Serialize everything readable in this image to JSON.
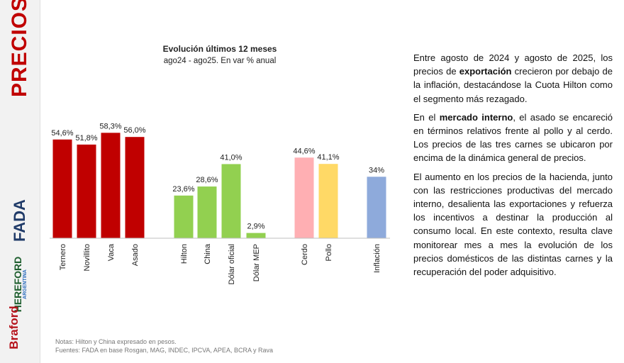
{
  "sidebar": {
    "section_label": "PRECIOS",
    "logos": {
      "fada": "FADA",
      "hereford": "HEREFORD",
      "hereford_sub": "ARGENTINA",
      "braford": "Braford"
    }
  },
  "chart_data": {
    "type": "bar",
    "title": "Evolución últimos 12 meses",
    "subtitle": "ago24 - ago25. En var % anual",
    "categories": [
      "Ternero",
      "Novillito",
      "Vaca",
      "Asado",
      "Hilton",
      "China",
      "Dólar oficial",
      "Dólar MEP",
      "Cerdo",
      "Pollo",
      "Inflación"
    ],
    "values": [
      54.6,
      51.8,
      58.3,
      56.0,
      23.6,
      28.6,
      41.0,
      2.9,
      44.6,
      41.1,
      34
    ],
    "data_labels": [
      "54,6%",
      "51,8%",
      "58,3%",
      "56,0%",
      "23,6%",
      "28,6%",
      "41,0%",
      "2,9%",
      "44,6%",
      "41,1%",
      "34%"
    ],
    "groups": [
      {
        "members": [
          0,
          1,
          2,
          3
        ],
        "color": "#c00000"
      },
      {
        "members": [
          4,
          5,
          6,
          7
        ],
        "color": "#92d050"
      },
      {
        "members": [
          8
        ],
        "color": "#ffafb3"
      },
      {
        "members": [
          9
        ],
        "color": "#ffd966"
      },
      {
        "members": [
          10
        ],
        "color": "#8eaadb"
      }
    ],
    "ylim": [
      0,
      65
    ],
    "grid": false,
    "legend": "none"
  },
  "notes": {
    "line1": "Notas: Hilton y China expresado en pesos.",
    "line2": "Fuentes: FADA en base Rosgan, MAG, INDEC, IPCVA, APEA, BCRA y Rava"
  },
  "text_panel": {
    "p1": [
      {
        "text": "Entre agosto de 2024 y agosto de 2025, los precios de ",
        "bold": false
      },
      {
        "text": "exportación",
        "bold": true
      },
      {
        "text": " crecieron por debajo de la inflación, destacándose la Cuota Hilton como el segmento más rezagado.",
        "bold": false
      }
    ],
    "p2": [
      {
        "text": "En el ",
        "bold": false
      },
      {
        "text": "mercado interno",
        "bold": true
      },
      {
        "text": ", el asado se encareció en términos relativos frente al pollo y al cerdo. Los precios de las tres carnes se ubicaron por encima de la dinámica general de precios.",
        "bold": false
      }
    ],
    "p3": [
      {
        "text": "El aumento en los precios de la hacienda, junto con las restricciones productivas del mercado interno, desalienta las exportaciones y refuerza los incentivos a destinar la producción al consumo local. En este contexto, resulta clave monitorear mes a mes la evolución de los precios domésticos de las distintas carnes y la recuperación del poder adquisitivo.",
        "bold": false
      }
    ]
  },
  "colors": {
    "accent": "#c00000",
    "exports": "#92d050",
    "pork": "#ffafb3",
    "chicken": "#ffd966",
    "inflation": "#8eaadb"
  }
}
